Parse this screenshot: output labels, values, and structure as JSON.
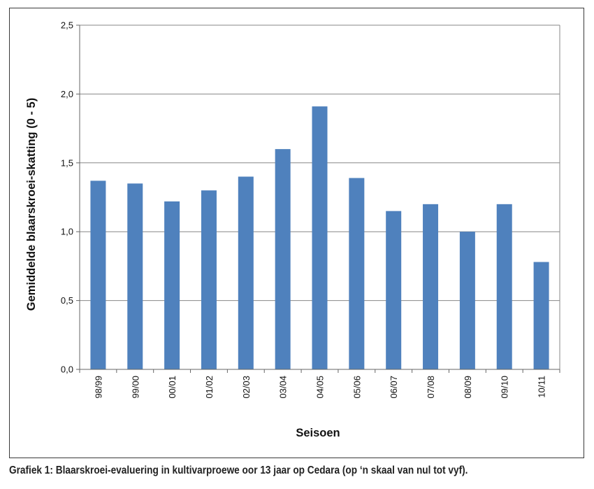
{
  "chart_data": {
    "type": "bar",
    "categories": [
      "98/99",
      "99/00",
      "00/01",
      "01/02",
      "02/03",
      "03/04",
      "04/05",
      "05/06",
      "06/07",
      "07/08",
      "08/09",
      "09/10",
      "10/11"
    ],
    "values": [
      1.37,
      1.35,
      1.22,
      1.3,
      1.4,
      1.6,
      1.91,
      1.39,
      1.15,
      1.2,
      1.0,
      1.2,
      0.78
    ],
    "xlabel": "Seisoen",
    "ylabel": "Gemiddelde blaarskroei-skatting (0 - 5)",
    "ylim": [
      0,
      2.5
    ],
    "yticks": [
      "0,0",
      "0,5",
      "1,0",
      "1,5",
      "2,0",
      "2,5"
    ],
    "grid": true,
    "legend": "none",
    "bar_color": "#4f81bd",
    "grid_color": "#878787"
  },
  "caption": "Grafiek 1: Blaarskroei-evaluering in kultivarproewe oor 13 jaar op Cedara (op ‘n skaal van nul tot vyf)."
}
